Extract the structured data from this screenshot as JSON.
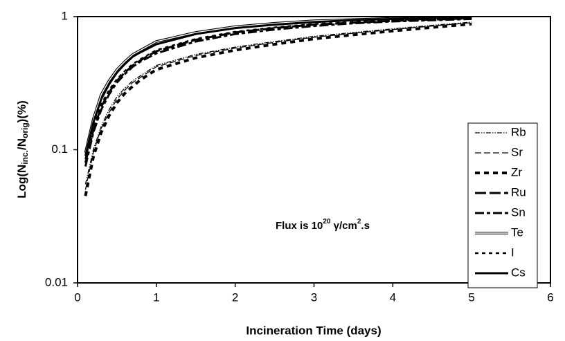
{
  "chart_data": {
    "type": "line",
    "xlabel": "Incineration Time (days)",
    "ylabel_parts": [
      "Log(N",
      "inc.",
      "/N",
      "orig",
      ")(%)"
    ],
    "annotation_parts": [
      "Flux is 10",
      "20",
      " γ/cm",
      "2",
      ".s"
    ],
    "x": [
      0.1,
      0.2,
      0.3,
      0.4,
      0.5,
      0.6,
      0.7,
      0.8,
      1,
      1.5,
      2,
      2.5,
      3,
      3.5,
      4,
      4.5,
      5
    ],
    "series": [
      {
        "name": "Rb",
        "color": "#000000",
        "dash": "7 2 1.5 2 1.5 2",
        "width": 1.3,
        "values": [
          0.055,
          0.1,
          0.15,
          0.2,
          0.25,
          0.29,
          0.33,
          0.36,
          0.43,
          0.52,
          0.59,
          0.65,
          0.71,
          0.76,
          0.81,
          0.86,
          0.91
        ]
      },
      {
        "name": "Sr",
        "color": "#000000",
        "dash": "9 4",
        "width": 1.3,
        "values": [
          0.05,
          0.095,
          0.145,
          0.19,
          0.24,
          0.28,
          0.32,
          0.35,
          0.42,
          0.51,
          0.58,
          0.64,
          0.7,
          0.75,
          0.8,
          0.85,
          0.9
        ]
      },
      {
        "name": "Zr",
        "color": "#000000",
        "dash": "7 6",
        "width": 4,
        "values": [
          0.045,
          0.088,
          0.135,
          0.18,
          0.225,
          0.265,
          0.3,
          0.335,
          0.4,
          0.49,
          0.56,
          0.62,
          0.68,
          0.73,
          0.78,
          0.83,
          0.88
        ]
      },
      {
        "name": "Ru",
        "color": "#000000",
        "dash": "16 5",
        "width": 3,
        "values": [
          0.08,
          0.14,
          0.21,
          0.27,
          0.33,
          0.38,
          0.43,
          0.47,
          0.55,
          0.67,
          0.76,
          0.82,
          0.87,
          0.9,
          0.93,
          0.95,
          0.97
        ]
      },
      {
        "name": "Sn",
        "color": "#000000",
        "dash": "13 4 5 4",
        "width": 3,
        "values": [
          0.075,
          0.135,
          0.2,
          0.26,
          0.32,
          0.37,
          0.42,
          0.46,
          0.53,
          0.65,
          0.74,
          0.8,
          0.85,
          0.89,
          0.92,
          0.94,
          0.96
        ]
      },
      {
        "name": "Te",
        "color": "#000000",
        "dash": "",
        "width": 1,
        "double": true,
        "values": [
          0.095,
          0.17,
          0.26,
          0.33,
          0.4,
          0.46,
          0.52,
          0.56,
          0.65,
          0.76,
          0.84,
          0.89,
          0.93,
          0.95,
          0.97,
          0.98,
          0.99
        ]
      },
      {
        "name": "I",
        "color": "#000000",
        "dash": "5 5",
        "width": 2.5,
        "values": [
          0.085,
          0.15,
          0.22,
          0.28,
          0.34,
          0.39,
          0.44,
          0.48,
          0.56,
          0.68,
          0.77,
          0.83,
          0.88,
          0.91,
          0.94,
          0.96,
          0.975
        ]
      },
      {
        "name": "Cs",
        "color": "#000000",
        "dash": "",
        "width": 3,
        "values": [
          0.09,
          0.16,
          0.24,
          0.31,
          0.38,
          0.44,
          0.5,
          0.54,
          0.62,
          0.74,
          0.82,
          0.87,
          0.91,
          0.94,
          0.96,
          0.975,
          0.985
        ]
      }
    ],
    "xlim": [
      0,
      6
    ],
    "xticks": [
      0,
      1,
      2,
      3,
      4,
      5,
      6
    ],
    "ylim": [
      0.01,
      1
    ],
    "yticks": [
      0.01,
      0.1,
      1
    ],
    "ylog": true,
    "legend": "right"
  }
}
